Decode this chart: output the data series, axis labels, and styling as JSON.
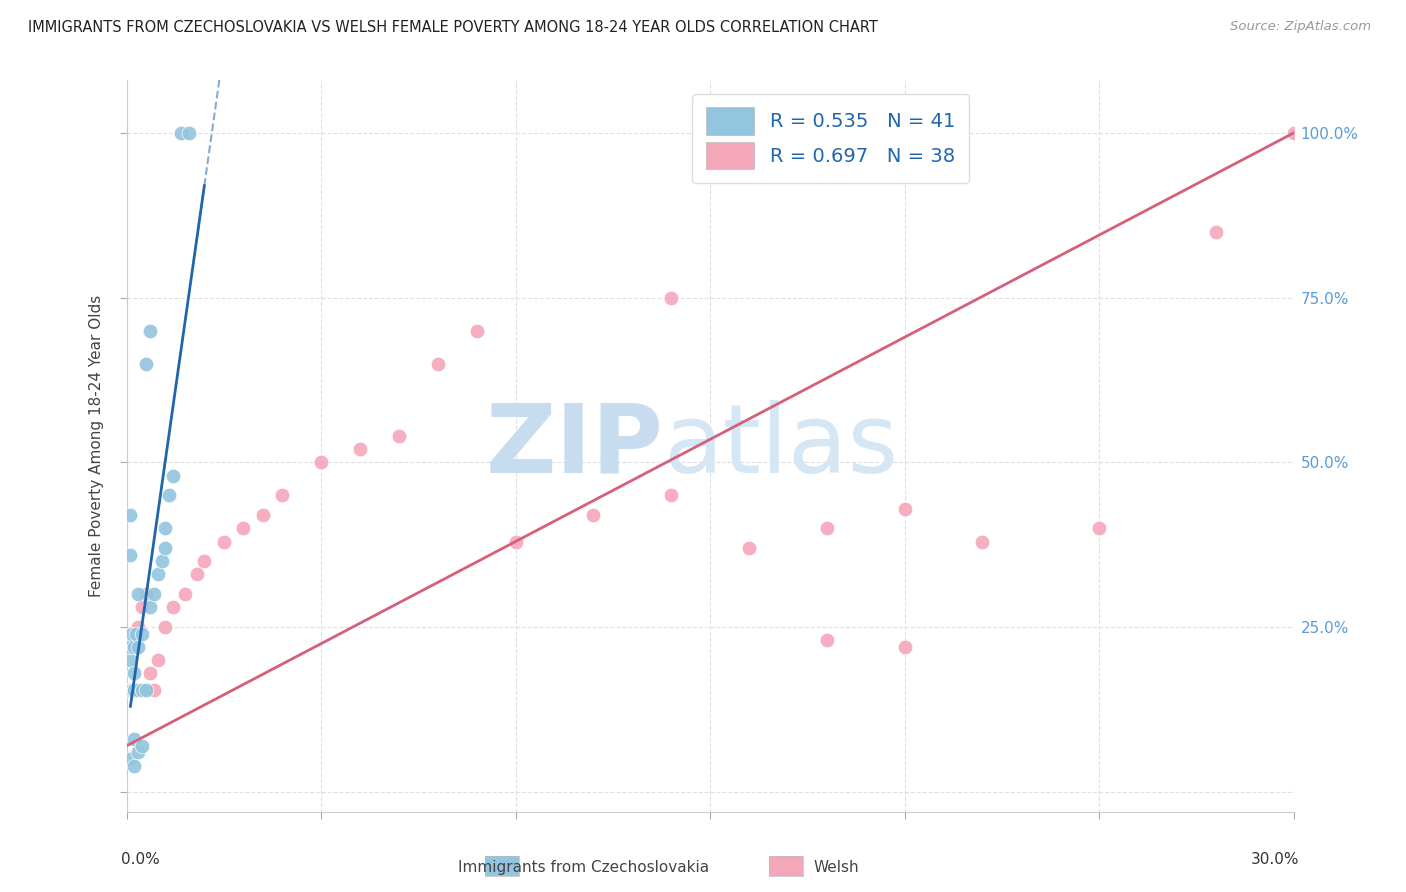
{
  "title": "IMMIGRANTS FROM CZECHOSLOVAKIA VS WELSH FEMALE POVERTY AMONG 18-24 YEAR OLDS CORRELATION CHART",
  "source": "Source: ZipAtlas.com",
  "ylabel": "Female Poverty Among 18-24 Year Olds",
  "legend_blue_r": "R = 0.535",
  "legend_blue_n": "N = 41",
  "legend_pink_r": "R = 0.697",
  "legend_pink_n": "N = 38",
  "blue_color": "#92c5de",
  "pink_color": "#f4a7b9",
  "blue_line_color": "#2166ac",
  "pink_line_color": "#d4607a",
  "legend_r_color": "#2166ac",
  "legend_n_color": "#2166ac",
  "right_tick_color": "#5b9bd5",
  "watermark_zip_color": "#c8dcf0",
  "watermark_atlas_color": "#d5e6f5",
  "xlim": [
    0.0,
    0.3
  ],
  "ylim": [
    -0.03,
    1.08
  ],
  "right_yticks": [
    0.0,
    0.25,
    0.5,
    0.75,
    1.0
  ],
  "right_yticklabels": [
    "",
    "25.0%",
    "50.0%",
    "75.0%",
    "100.0%"
  ],
  "blue_x": [
    0.0005,
    0.0008,
    0.001,
    0.001,
    0.001,
    0.001,
    0.001,
    0.0015,
    0.0015,
    0.002,
    0.002,
    0.002,
    0.002,
    0.002,
    0.0025,
    0.003,
    0.003,
    0.003,
    0.003,
    0.004,
    0.004,
    0.005,
    0.006,
    0.007,
    0.008,
    0.009,
    0.01,
    0.01,
    0.011,
    0.012,
    0.001,
    0.001,
    0.001,
    0.002,
    0.002,
    0.003,
    0.004,
    0.005,
    0.006,
    0.014,
    0.016
  ],
  "blue_y": [
    0.155,
    0.155,
    0.155,
    0.155,
    0.155,
    0.2,
    0.22,
    0.24,
    0.155,
    0.155,
    0.155,
    0.155,
    0.18,
    0.22,
    0.24,
    0.155,
    0.155,
    0.22,
    0.3,
    0.155,
    0.24,
    0.155,
    0.28,
    0.3,
    0.33,
    0.35,
    0.37,
    0.4,
    0.45,
    0.48,
    0.42,
    0.36,
    0.05,
    0.08,
    0.04,
    0.06,
    0.07,
    0.65,
    0.7,
    1.0,
    1.0
  ],
  "pink_x": [
    0.0005,
    0.001,
    0.001,
    0.002,
    0.002,
    0.003,
    0.004,
    0.005,
    0.006,
    0.007,
    0.008,
    0.01,
    0.012,
    0.015,
    0.018,
    0.02,
    0.025,
    0.03,
    0.035,
    0.04,
    0.05,
    0.06,
    0.07,
    0.08,
    0.09,
    0.1,
    0.12,
    0.14,
    0.16,
    0.18,
    0.2,
    0.22,
    0.25,
    0.28,
    0.3,
    0.2,
    0.14,
    0.18
  ],
  "pink_y": [
    0.155,
    0.155,
    0.155,
    0.155,
    0.22,
    0.25,
    0.28,
    0.3,
    0.18,
    0.155,
    0.2,
    0.25,
    0.28,
    0.3,
    0.33,
    0.35,
    0.38,
    0.4,
    0.42,
    0.45,
    0.5,
    0.52,
    0.54,
    0.65,
    0.7,
    0.38,
    0.42,
    0.45,
    0.37,
    0.4,
    0.43,
    0.38,
    0.4,
    0.85,
    1.0,
    0.22,
    0.75,
    0.23
  ],
  "title_fontsize": 10.5,
  "source_fontsize": 9.5,
  "axis_label_fontsize": 11,
  "legend_fontsize": 14,
  "tick_label_fontsize": 11
}
